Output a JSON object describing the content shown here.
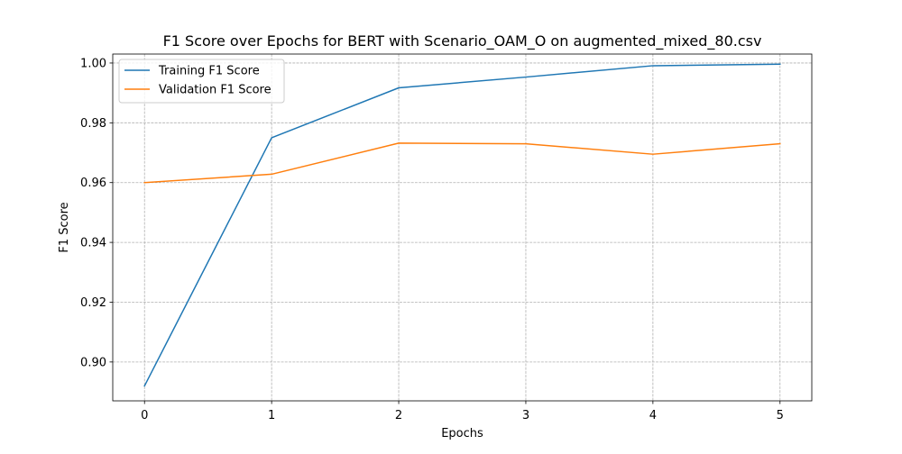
{
  "chart_data": {
    "type": "line",
    "title": "F1 Score over Epochs for BERT with Scenario_OAM_O on augmented_mixed_80.csv",
    "xlabel": "Epochs",
    "ylabel": "F1 Score",
    "x": [
      0,
      1,
      2,
      3,
      4,
      5
    ],
    "xlim": [
      -0.25,
      5.25
    ],
    "ylim": [
      0.887,
      1.003
    ],
    "x_ticks": [
      {
        "value": 0,
        "label": "0"
      },
      {
        "value": 1,
        "label": "1"
      },
      {
        "value": 2,
        "label": "2"
      },
      {
        "value": 3,
        "label": "3"
      },
      {
        "value": 4,
        "label": "4"
      },
      {
        "value": 5,
        "label": "5"
      }
    ],
    "y_ticks": [
      {
        "value": 0.9,
        "label": "0.90"
      },
      {
        "value": 0.92,
        "label": "0.92"
      },
      {
        "value": 0.94,
        "label": "0.94"
      },
      {
        "value": 0.96,
        "label": "0.96"
      },
      {
        "value": 0.98,
        "label": "0.98"
      },
      {
        "value": 1.0,
        "label": "1.00"
      }
    ],
    "grid": true,
    "legend_position": "top-left",
    "series": [
      {
        "name": "Training F1 Score",
        "color": "#1f77b4",
        "values": [
          0.892,
          0.975,
          0.9917,
          0.9953,
          0.9991,
          0.9996
        ]
      },
      {
        "name": "Validation F1 Score",
        "color": "#ff7f0e",
        "values": [
          0.96,
          0.9628,
          0.9732,
          0.973,
          0.9695,
          0.973
        ]
      }
    ]
  }
}
